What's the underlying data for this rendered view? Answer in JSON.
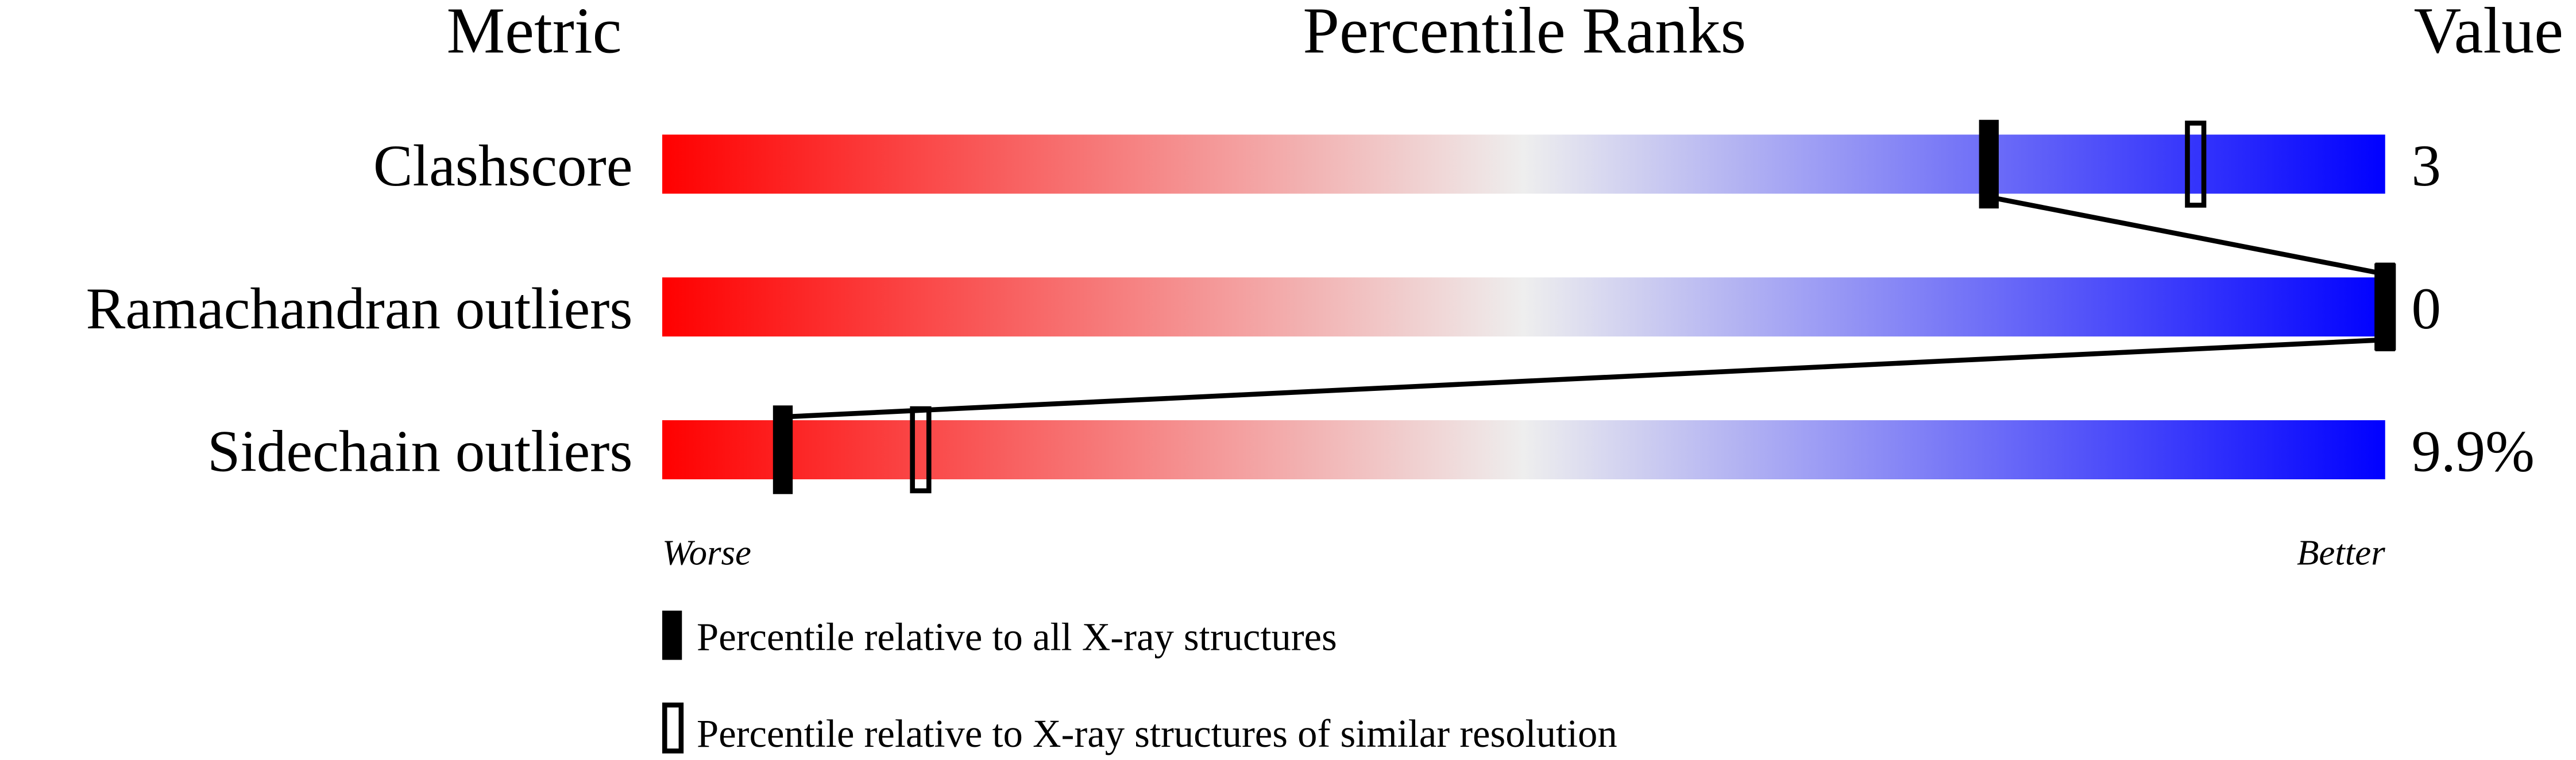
{
  "chart_data": {
    "type": "bar",
    "headers": {
      "metric": "Metric",
      "ranks": "Percentile Ranks",
      "value": "Value"
    },
    "xlim": [
      0,
      100
    ],
    "axis_labels": {
      "worse": "Worse",
      "better": "Better"
    },
    "gradient_colors": {
      "worse": "#ff0000",
      "middle": "#eeeeee",
      "better": "#0000ff"
    },
    "rows": [
      {
        "metric": "Clashscore",
        "value": "3",
        "percentile_all": 77,
        "percentile_similar": 89
      },
      {
        "metric": "Ramachandran outliers",
        "value": "0",
        "percentile_all": 100,
        "percentile_similar": 100
      },
      {
        "metric": "Sidechain outliers",
        "value": "9.9%",
        "percentile_all": 7,
        "percentile_similar": 15
      }
    ],
    "legend": [
      {
        "marker": "filled",
        "label": "Percentile relative to all X-ray structures"
      },
      {
        "marker": "open",
        "label": "Percentile relative to X-ray structures of similar resolution"
      }
    ]
  }
}
